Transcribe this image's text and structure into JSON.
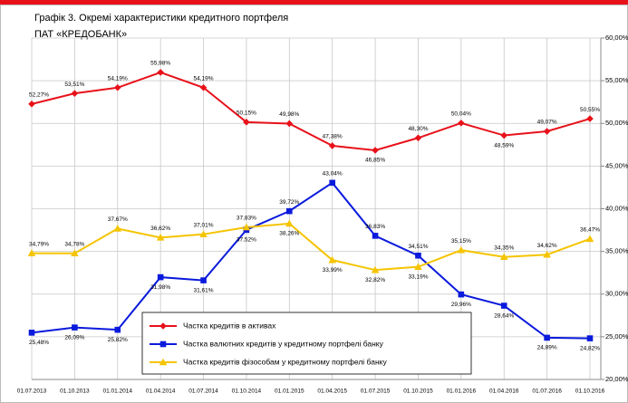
{
  "chart_data": {
    "type": "line",
    "title": "Графік 3. Окремі характеристики кредитного портфеля",
    "subtitle": "ПАТ «КРЕДОБАНК»",
    "categories": [
      "01.07.2013",
      "01.10.2013",
      "01.01.2014",
      "01.04.2014",
      "01.07.2014",
      "01.10.2014",
      "01.01.2015",
      "01.04.2015",
      "01.07.2015",
      "01.10.2015",
      "01.01.2016",
      "01.04.2016",
      "01.07.2016",
      "01.10.2016"
    ],
    "series": [
      {
        "name": "Частка кредитів в активах",
        "color": "#e8111a",
        "marker": "diamond",
        "values": [
          52.27,
          53.51,
          54.19,
          55.98,
          54.19,
          50.15,
          49.98,
          47.38,
          46.85,
          48.3,
          50.04,
          48.59,
          49.07,
          50.55
        ],
        "value_labels": [
          "52,27%",
          "53,51%",
          "54,19%",
          "55,98%",
          "54,19%",
          "50,15%",
          "49,98%",
          "47,38%",
          "46,85%",
          "48,30%",
          "50,04%",
          "48,59%",
          "49,07%",
          "50,55%"
        ]
      },
      {
        "name": "Частка валютних кредитів у кредитному портфелі банку",
        "color": "#0a1adc",
        "marker": "square",
        "values": [
          25.48,
          26.09,
          25.82,
          31.98,
          31.61,
          37.52,
          39.72,
          43.04,
          36.83,
          34.51,
          29.96,
          28.64,
          24.89,
          24.82
        ],
        "value_labels": [
          "25,48%",
          "26,09%",
          "25,82%",
          "31,98%",
          "31,61%",
          "37,52%",
          "39,72%",
          "43,04%",
          "36,83%",
          "34,51%",
          "29,96%",
          "28,64%",
          "24,89%",
          "24,82%"
        ]
      },
      {
        "name": "Частка кредитів фізособам у кредитному портфелі банку",
        "color": "#f5c400",
        "marker": "triangle",
        "values": [
          34.79,
          34.78,
          37.67,
          36.62,
          37.01,
          37.83,
          38.26,
          33.99,
          32.82,
          33.19,
          35.15,
          34.35,
          34.62,
          36.47
        ],
        "value_labels": [
          "34,79%",
          "34,78%",
          "37,67%",
          "36,62%",
          "37,01%",
          "37,83%",
          "38,26%",
          "33,99%",
          "32,82%",
          "33,19%",
          "35,15%",
          "34,35%",
          "34,62%",
          "36,47%"
        ]
      }
    ],
    "ylim": [
      20,
      60
    ],
    "yticks": [
      {
        "value": 20,
        "label": "20,00%"
      },
      {
        "value": 25,
        "label": "25,00%"
      },
      {
        "value": 30,
        "label": "30,00%"
      },
      {
        "value": 35,
        "label": "35,00%"
      },
      {
        "value": 40,
        "label": "40,00%"
      },
      {
        "value": 45,
        "label": "45,00%"
      },
      {
        "value": 50,
        "label": "50,00%"
      },
      {
        "value": 55,
        "label": "55,00%"
      },
      {
        "value": 60,
        "label": "60,00%"
      }
    ],
    "grid": true,
    "legend": "lower center"
  }
}
